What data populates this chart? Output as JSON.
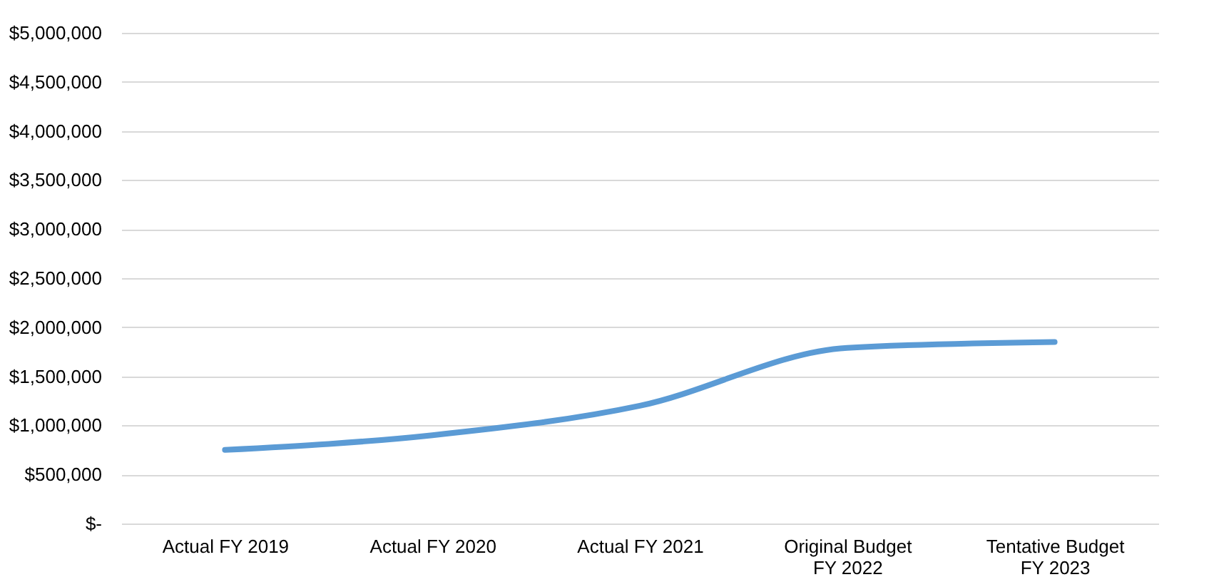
{
  "chart_data": {
    "type": "line",
    "categories": [
      "Actual FY 2019",
      "Actual FY 2020",
      "Actual FY 2021",
      "Original Budget FY 2022",
      "Tentative Budget FY 2023"
    ],
    "series": [
      {
        "color": "#5b9bd5",
        "values": [
          750000,
          900000,
          1200000,
          1790000,
          1850000
        ]
      }
    ],
    "ylim": [
      0,
      5000000
    ],
    "yticks": [
      {
        "value": 0,
        "label": "$-"
      },
      {
        "value": 500000,
        "label": "$500,000"
      },
      {
        "value": 1000000,
        "label": "$1,000,000"
      },
      {
        "value": 1500000,
        "label": "$1,500,000"
      },
      {
        "value": 2000000,
        "label": "$2,000,000"
      },
      {
        "value": 2500000,
        "label": "$2,500,000"
      },
      {
        "value": 3000000,
        "label": "$3,000,000"
      },
      {
        "value": 3500000,
        "label": "$3,500,000"
      },
      {
        "value": 4000000,
        "label": "$4,000,000"
      },
      {
        "value": 4500000,
        "label": "$4,500,000"
      },
      {
        "value": 5000000,
        "label": "$5,000,000"
      }
    ],
    "grid": "y",
    "marker": "none",
    "line_style": "solid"
  }
}
